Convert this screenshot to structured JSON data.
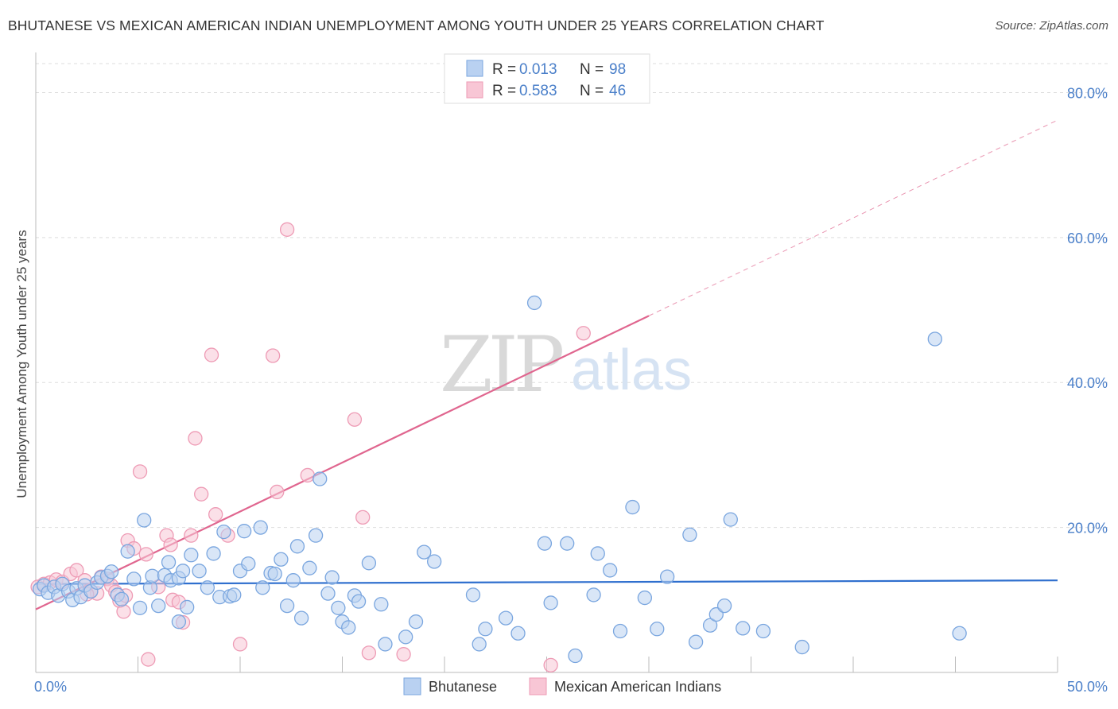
{
  "header": {
    "title": "BHUTANESE VS MEXICAN AMERICAN INDIAN UNEMPLOYMENT AMONG YOUTH UNDER 25 YEARS CORRELATION CHART",
    "source": "Source: ZipAtlas.com"
  },
  "watermark": {
    "zip": "ZIP",
    "atlas": "atlas"
  },
  "legend_top": [
    {
      "r_label": "R =",
      "r_value": "0.013",
      "n_label": "N =",
      "n_value": "98"
    },
    {
      "r_label": "R =",
      "r_value": "0.583",
      "n_label": "N =",
      "n_value": "46"
    }
  ],
  "legend_bottom": [
    "Bhutanese",
    "Mexican American Indians"
  ],
  "colors": {
    "bhutanese_fill": "#b9d1f1",
    "bhutanese_stroke": "#7aa6df",
    "bhutanese_line": "#2f6fce",
    "mexican_fill": "#f8c6d5",
    "mexican_stroke": "#ee9bb5",
    "mexican_line": "#e0668f",
    "tick_label": "#4a7fc9",
    "grid": "#dddddd"
  },
  "chart_data": {
    "type": "scatter",
    "title": "BHUTANESE VS MEXICAN AMERICAN INDIAN UNEMPLOYMENT AMONG YOUTH UNDER 25 YEARS CORRELATION CHART",
    "xlabel": "",
    "ylabel": "Unemployment Among Youth under 25 years",
    "xlim": [
      0,
      50
    ],
    "ylim": [
      0,
      84
    ],
    "x_tick_labels": [
      "0.0%",
      "50.0%"
    ],
    "y_ticks": [
      20,
      40,
      60,
      80
    ],
    "y_tick_labels": [
      "20.0%",
      "40.0%",
      "60.0%",
      "80.0%"
    ],
    "grid": "horizontal dashed",
    "legend_position": "top-center",
    "series": [
      {
        "name": "Bhutanese",
        "r": 0.013,
        "n": 98,
        "trend": {
          "x": [
            0,
            50
          ],
          "y": [
            12.2,
            12.7
          ]
        },
        "points": [
          [
            0.2,
            11.5
          ],
          [
            0.4,
            12.0
          ],
          [
            0.6,
            11.0
          ],
          [
            0.9,
            11.8
          ],
          [
            1.1,
            10.6
          ],
          [
            1.3,
            12.2
          ],
          [
            1.6,
            11.2
          ],
          [
            1.8,
            10.0
          ],
          [
            2.0,
            11.6
          ],
          [
            2.2,
            10.4
          ],
          [
            2.4,
            12.0
          ],
          [
            2.7,
            11.2
          ],
          [
            3.0,
            12.4
          ],
          [
            3.2,
            13.1
          ],
          [
            3.5,
            13.3
          ],
          [
            3.7,
            13.9
          ],
          [
            4.0,
            10.7
          ],
          [
            4.2,
            10.1
          ],
          [
            4.5,
            16.7
          ],
          [
            4.8,
            12.9
          ],
          [
            5.1,
            8.9
          ],
          [
            5.3,
            21.0
          ],
          [
            5.6,
            11.7
          ],
          [
            5.7,
            13.3
          ],
          [
            6.0,
            9.2
          ],
          [
            6.3,
            13.4
          ],
          [
            6.5,
            15.2
          ],
          [
            6.6,
            12.7
          ],
          [
            7.0,
            13.0
          ],
          [
            7.0,
            7.0
          ],
          [
            7.2,
            14.0
          ],
          [
            7.4,
            9.0
          ],
          [
            7.6,
            16.2
          ],
          [
            8.0,
            14.0
          ],
          [
            8.4,
            11.7
          ],
          [
            8.7,
            16.4
          ],
          [
            9.0,
            10.4
          ],
          [
            9.2,
            19.4
          ],
          [
            9.5,
            10.5
          ],
          [
            9.7,
            10.7
          ],
          [
            10.0,
            14.0
          ],
          [
            10.2,
            19.5
          ],
          [
            10.4,
            15.0
          ],
          [
            11.0,
            20.0
          ],
          [
            11.1,
            11.7
          ],
          [
            11.5,
            13.7
          ],
          [
            11.7,
            13.6
          ],
          [
            12.0,
            15.6
          ],
          [
            12.3,
            9.2
          ],
          [
            12.6,
            12.7
          ],
          [
            12.8,
            17.4
          ],
          [
            13.0,
            7.5
          ],
          [
            13.4,
            14.4
          ],
          [
            13.7,
            18.9
          ],
          [
            13.9,
            26.7
          ],
          [
            14.3,
            10.9
          ],
          [
            14.5,
            13.1
          ],
          [
            14.8,
            8.9
          ],
          [
            15.0,
            7.0
          ],
          [
            15.3,
            6.2
          ],
          [
            15.6,
            10.6
          ],
          [
            15.8,
            9.8
          ],
          [
            16.3,
            15.1
          ],
          [
            16.9,
            9.4
          ],
          [
            17.1,
            3.9
          ],
          [
            18.1,
            4.9
          ],
          [
            18.6,
            7.0
          ],
          [
            19.0,
            16.6
          ],
          [
            19.5,
            15.3
          ],
          [
            21.4,
            10.7
          ],
          [
            21.7,
            3.9
          ],
          [
            22.0,
            6.0
          ],
          [
            23.0,
            7.5
          ],
          [
            23.6,
            5.4
          ],
          [
            24.4,
            51.0
          ],
          [
            24.9,
            17.8
          ],
          [
            25.2,
            9.6
          ],
          [
            26.0,
            17.8
          ],
          [
            26.4,
            2.3
          ],
          [
            27.3,
            10.7
          ],
          [
            27.5,
            16.4
          ],
          [
            28.1,
            14.1
          ],
          [
            28.6,
            5.7
          ],
          [
            29.2,
            22.8
          ],
          [
            29.8,
            10.3
          ],
          [
            30.4,
            6.0
          ],
          [
            30.9,
            13.2
          ],
          [
            32.0,
            19.0
          ],
          [
            32.3,
            4.2
          ],
          [
            33.0,
            6.5
          ],
          [
            33.3,
            8.0
          ],
          [
            33.7,
            9.2
          ],
          [
            34.0,
            21.1
          ],
          [
            34.6,
            6.1
          ],
          [
            35.6,
            5.7
          ],
          [
            37.5,
            3.5
          ],
          [
            44.0,
            46.0
          ],
          [
            45.2,
            5.4
          ]
        ]
      },
      {
        "name": "Mexican American Indians",
        "r": 0.583,
        "n": 46,
        "trend": {
          "x": [
            0,
            30
          ],
          "y": [
            8.7,
            49.2
          ]
        },
        "trend_dashed": {
          "x": [
            30,
            50
          ],
          "y": [
            49.2,
            76.2
          ]
        },
        "points": [
          [
            0.1,
            11.8
          ],
          [
            0.4,
            12.2
          ],
          [
            0.7,
            12.4
          ],
          [
            1.0,
            12.8
          ],
          [
            1.3,
            12.5
          ],
          [
            1.7,
            13.6
          ],
          [
            2.0,
            14.1
          ],
          [
            2.4,
            12.7
          ],
          [
            2.7,
            11.2
          ],
          [
            3.0,
            10.9
          ],
          [
            3.2,
            13.2
          ],
          [
            3.5,
            12.9
          ],
          [
            3.7,
            12.0
          ],
          [
            3.9,
            11.1
          ],
          [
            4.1,
            9.9
          ],
          [
            4.3,
            8.4
          ],
          [
            4.4,
            10.6
          ],
          [
            4.5,
            18.2
          ],
          [
            4.8,
            17.1
          ],
          [
            5.1,
            27.7
          ],
          [
            5.4,
            16.3
          ],
          [
            5.5,
            1.8
          ],
          [
            6.0,
            11.8
          ],
          [
            6.4,
            18.9
          ],
          [
            6.6,
            17.6
          ],
          [
            6.7,
            10.0
          ],
          [
            7.0,
            9.7
          ],
          [
            7.2,
            6.9
          ],
          [
            7.6,
            18.9
          ],
          [
            7.8,
            32.3
          ],
          [
            8.1,
            24.6
          ],
          [
            8.6,
            43.8
          ],
          [
            8.8,
            21.8
          ],
          [
            9.4,
            18.9
          ],
          [
            10.0,
            3.9
          ],
          [
            11.6,
            43.7
          ],
          [
            11.8,
            24.9
          ],
          [
            12.3,
            61.1
          ],
          [
            13.3,
            27.2
          ],
          [
            15.6,
            34.9
          ],
          [
            16.0,
            21.4
          ],
          [
            16.3,
            2.7
          ],
          [
            18.0,
            2.5
          ],
          [
            26.8,
            46.8
          ],
          [
            25.2,
            1.0
          ],
          [
            2.5,
            10.8
          ]
        ]
      }
    ]
  }
}
